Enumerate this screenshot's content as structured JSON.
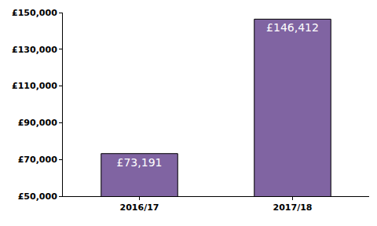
{
  "chart_data": {
    "type": "bar",
    "categories": [
      "2016/17",
      "2017/18"
    ],
    "values": [
      73191,
      146412
    ],
    "value_labels": [
      "£73,191",
      "£146,412"
    ],
    "data_labels": true,
    "color": "#8064a2",
    "ylim": [
      50000,
      150000
    ],
    "yticks": [
      {
        "value": 50000,
        "label": "£50,000"
      },
      {
        "value": 70000,
        "label": "£70,000"
      },
      {
        "value": 90000,
        "label": "£90,000"
      },
      {
        "value": 110000,
        "label": "£110,000"
      },
      {
        "value": 130000,
        "label": "£130,000"
      },
      {
        "value": 150000,
        "label": "£150,000"
      }
    ],
    "grid": false
  }
}
